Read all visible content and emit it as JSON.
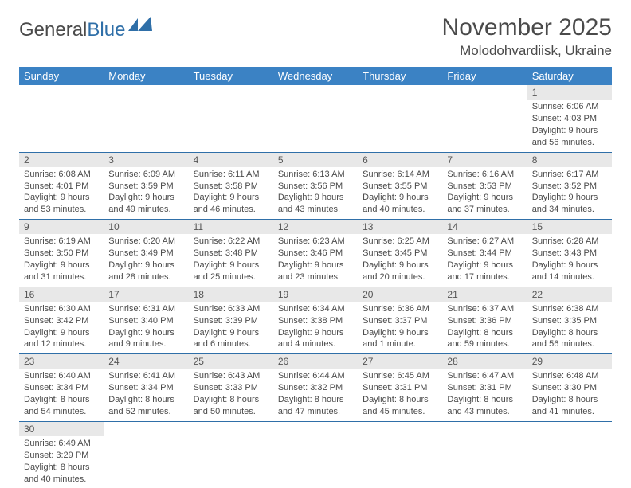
{
  "logo": {
    "text1": "General",
    "text2": "Blue"
  },
  "title": "November 2025",
  "location": "Molodohvardiisk, Ukraine",
  "colors": {
    "header_bg": "#3b82c4",
    "header_text": "#ffffff",
    "rule": "#2f6fa8",
    "daynum_bg": "#e8e8e8",
    "text": "#4a4a4a",
    "logo_blue": "#2f6fa8"
  },
  "typography": {
    "title_fontsize": 30,
    "location_fontsize": 17,
    "header_fontsize": 13,
    "cell_fontsize": 11
  },
  "weekdays": [
    "Sunday",
    "Monday",
    "Tuesday",
    "Wednesday",
    "Thursday",
    "Friday",
    "Saturday"
  ],
  "weeks": [
    [
      null,
      null,
      null,
      null,
      null,
      null,
      {
        "n": "1",
        "sr": "Sunrise: 6:06 AM",
        "ss": "Sunset: 4:03 PM",
        "dl": "Daylight: 9 hours and 56 minutes."
      }
    ],
    [
      {
        "n": "2",
        "sr": "Sunrise: 6:08 AM",
        "ss": "Sunset: 4:01 PM",
        "dl": "Daylight: 9 hours and 53 minutes."
      },
      {
        "n": "3",
        "sr": "Sunrise: 6:09 AM",
        "ss": "Sunset: 3:59 PM",
        "dl": "Daylight: 9 hours and 49 minutes."
      },
      {
        "n": "4",
        "sr": "Sunrise: 6:11 AM",
        "ss": "Sunset: 3:58 PM",
        "dl": "Daylight: 9 hours and 46 minutes."
      },
      {
        "n": "5",
        "sr": "Sunrise: 6:13 AM",
        "ss": "Sunset: 3:56 PM",
        "dl": "Daylight: 9 hours and 43 minutes."
      },
      {
        "n": "6",
        "sr": "Sunrise: 6:14 AM",
        "ss": "Sunset: 3:55 PM",
        "dl": "Daylight: 9 hours and 40 minutes."
      },
      {
        "n": "7",
        "sr": "Sunrise: 6:16 AM",
        "ss": "Sunset: 3:53 PM",
        "dl": "Daylight: 9 hours and 37 minutes."
      },
      {
        "n": "8",
        "sr": "Sunrise: 6:17 AM",
        "ss": "Sunset: 3:52 PM",
        "dl": "Daylight: 9 hours and 34 minutes."
      }
    ],
    [
      {
        "n": "9",
        "sr": "Sunrise: 6:19 AM",
        "ss": "Sunset: 3:50 PM",
        "dl": "Daylight: 9 hours and 31 minutes."
      },
      {
        "n": "10",
        "sr": "Sunrise: 6:20 AM",
        "ss": "Sunset: 3:49 PM",
        "dl": "Daylight: 9 hours and 28 minutes."
      },
      {
        "n": "11",
        "sr": "Sunrise: 6:22 AM",
        "ss": "Sunset: 3:48 PM",
        "dl": "Daylight: 9 hours and 25 minutes."
      },
      {
        "n": "12",
        "sr": "Sunrise: 6:23 AM",
        "ss": "Sunset: 3:46 PM",
        "dl": "Daylight: 9 hours and 23 minutes."
      },
      {
        "n": "13",
        "sr": "Sunrise: 6:25 AM",
        "ss": "Sunset: 3:45 PM",
        "dl": "Daylight: 9 hours and 20 minutes."
      },
      {
        "n": "14",
        "sr": "Sunrise: 6:27 AM",
        "ss": "Sunset: 3:44 PM",
        "dl": "Daylight: 9 hours and 17 minutes."
      },
      {
        "n": "15",
        "sr": "Sunrise: 6:28 AM",
        "ss": "Sunset: 3:43 PM",
        "dl": "Daylight: 9 hours and 14 minutes."
      }
    ],
    [
      {
        "n": "16",
        "sr": "Sunrise: 6:30 AM",
        "ss": "Sunset: 3:42 PM",
        "dl": "Daylight: 9 hours and 12 minutes."
      },
      {
        "n": "17",
        "sr": "Sunrise: 6:31 AM",
        "ss": "Sunset: 3:40 PM",
        "dl": "Daylight: 9 hours and 9 minutes."
      },
      {
        "n": "18",
        "sr": "Sunrise: 6:33 AM",
        "ss": "Sunset: 3:39 PM",
        "dl": "Daylight: 9 hours and 6 minutes."
      },
      {
        "n": "19",
        "sr": "Sunrise: 6:34 AM",
        "ss": "Sunset: 3:38 PM",
        "dl": "Daylight: 9 hours and 4 minutes."
      },
      {
        "n": "20",
        "sr": "Sunrise: 6:36 AM",
        "ss": "Sunset: 3:37 PM",
        "dl": "Daylight: 9 hours and 1 minute."
      },
      {
        "n": "21",
        "sr": "Sunrise: 6:37 AM",
        "ss": "Sunset: 3:36 PM",
        "dl": "Daylight: 8 hours and 59 minutes."
      },
      {
        "n": "22",
        "sr": "Sunrise: 6:38 AM",
        "ss": "Sunset: 3:35 PM",
        "dl": "Daylight: 8 hours and 56 minutes."
      }
    ],
    [
      {
        "n": "23",
        "sr": "Sunrise: 6:40 AM",
        "ss": "Sunset: 3:34 PM",
        "dl": "Daylight: 8 hours and 54 minutes."
      },
      {
        "n": "24",
        "sr": "Sunrise: 6:41 AM",
        "ss": "Sunset: 3:34 PM",
        "dl": "Daylight: 8 hours and 52 minutes."
      },
      {
        "n": "25",
        "sr": "Sunrise: 6:43 AM",
        "ss": "Sunset: 3:33 PM",
        "dl": "Daylight: 8 hours and 50 minutes."
      },
      {
        "n": "26",
        "sr": "Sunrise: 6:44 AM",
        "ss": "Sunset: 3:32 PM",
        "dl": "Daylight: 8 hours and 47 minutes."
      },
      {
        "n": "27",
        "sr": "Sunrise: 6:45 AM",
        "ss": "Sunset: 3:31 PM",
        "dl": "Daylight: 8 hours and 45 minutes."
      },
      {
        "n": "28",
        "sr": "Sunrise: 6:47 AM",
        "ss": "Sunset: 3:31 PM",
        "dl": "Daylight: 8 hours and 43 minutes."
      },
      {
        "n": "29",
        "sr": "Sunrise: 6:48 AM",
        "ss": "Sunset: 3:30 PM",
        "dl": "Daylight: 8 hours and 41 minutes."
      }
    ],
    [
      {
        "n": "30",
        "sr": "Sunrise: 6:49 AM",
        "ss": "Sunset: 3:29 PM",
        "dl": "Daylight: 8 hours and 40 minutes."
      },
      null,
      null,
      null,
      null,
      null,
      null
    ]
  ]
}
